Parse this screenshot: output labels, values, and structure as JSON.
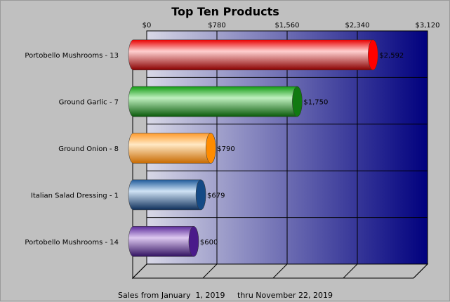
{
  "chart_data": {
    "type": "bar",
    "orientation": "horizontal",
    "title": "Top Ten Products",
    "subtitle": "Sales from January  1, 2019     thru November 22, 2019",
    "categories": [
      "Portobello Mushrooms - 13",
      "Ground Garlic - 7",
      "Ground Onion - 8",
      "Italian Salad Dressing - 1",
      "Portobello Mushrooms - 14"
    ],
    "values": [
      2592,
      1750,
      790,
      679,
      600
    ],
    "value_labels": [
      "$2,592",
      "$1,750",
      "$790",
      "$679",
      "$600"
    ],
    "ticks": [
      0,
      780,
      1560,
      2340,
      3120
    ],
    "tick_labels": [
      "$0",
      "$780",
      "$1,560",
      "$2,340",
      "$3,120"
    ],
    "xlim": [
      0,
      3120
    ],
    "axis_position": "top",
    "grid": true,
    "colors": {
      "bars": [
        "#e80000",
        "#119a11",
        "#ff9a2a",
        "#1f5a9a",
        "#5a2a9a"
      ],
      "bars_light": [
        "#ffd0d0",
        "#bff0bf",
        "#ffe8c4",
        "#cfe2f5",
        "#ddc8f0"
      ],
      "bars_dark": [
        "#8a0000",
        "#0a5a0a",
        "#c86a00",
        "#0e2f5a",
        "#301060"
      ],
      "caps": [
        "#ff0000",
        "#107a10",
        "#ff8c00",
        "#154a85",
        "#4a1a8a"
      ],
      "plot_gradient_start": "#d8d8e6",
      "plot_gradient_end": "#00007e",
      "background": "#c0c0c0"
    }
  }
}
